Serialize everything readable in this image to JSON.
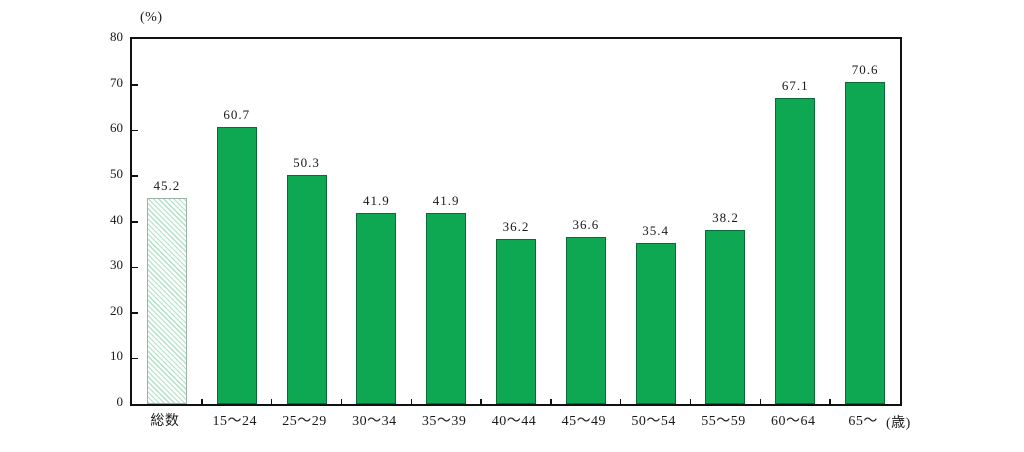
{
  "page": {
    "background_color": "#ffffff",
    "text_color": "#1a1a1a"
  },
  "chart_data": {
    "type": "bar",
    "title": "",
    "y_unit_label": "(%)",
    "x_unit_label": "(歳)",
    "categories": [
      "総数",
      "15〜24",
      "25〜29",
      "30〜34",
      "35〜39",
      "40〜44",
      "45〜49",
      "50〜54",
      "55〜59",
      "60〜64",
      "65〜"
    ],
    "values": [
      45.2,
      60.7,
      50.3,
      41.9,
      41.9,
      36.2,
      36.6,
      35.4,
      38.2,
      67.1,
      70.6
    ],
    "value_labels": [
      "45.2",
      "60.7",
      "50.3",
      "41.9",
      "41.9",
      "36.2",
      "36.6",
      "35.4",
      "38.2",
      "67.1",
      "70.6"
    ],
    "ylim": [
      0,
      80
    ],
    "yticks": [
      0,
      10,
      20,
      30,
      40,
      50,
      60,
      70,
      80
    ],
    "grid": false,
    "legend": "none",
    "bar_styles": [
      "hatched",
      "solid",
      "solid",
      "solid",
      "solid",
      "solid",
      "solid",
      "solid",
      "solid",
      "solid",
      "solid"
    ],
    "colors": {
      "solid_bar_fill": "#0ea852",
      "solid_bar_border": "#0a6b38",
      "hatched_bar_line": "#aee2c6",
      "hatched_bar_border": "#9bb3a6",
      "axis_frame": "#111111"
    }
  }
}
